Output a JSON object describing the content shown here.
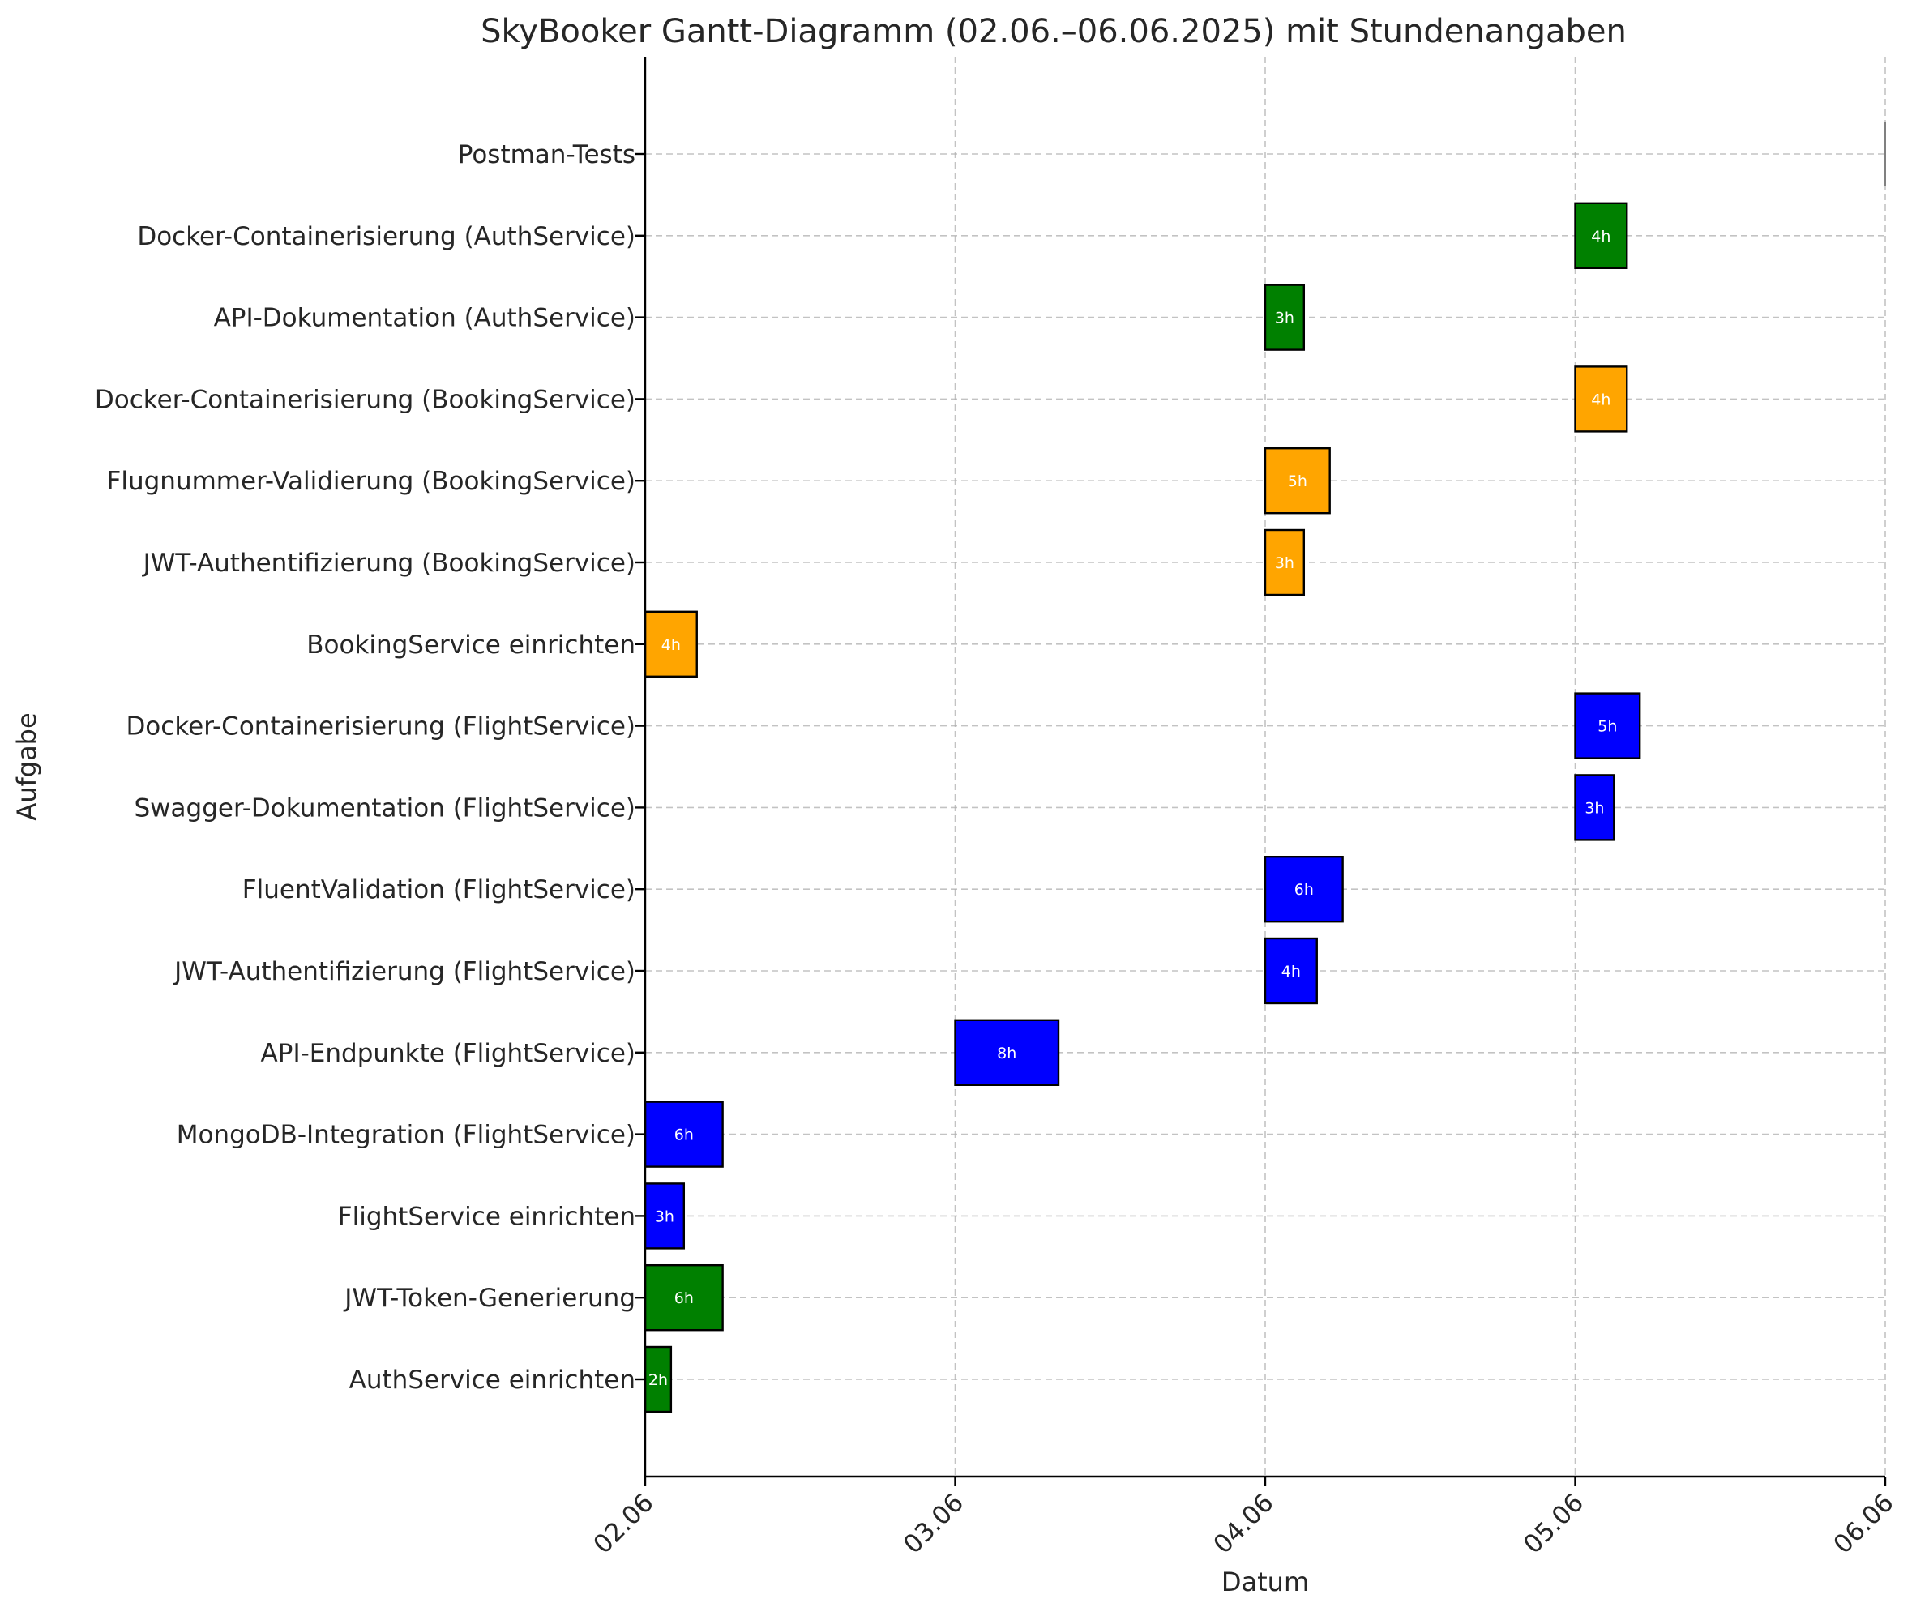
{
  "chart_data": {
    "type": "gantt",
    "title": "SkyBooker Gantt-Diagramm (02.06.–06.06.2025) mit Stundenangaben",
    "xlabel": "Datum",
    "ylabel": "Aufgabe",
    "x_ticks": [
      "02.06",
      "03.06",
      "04.06",
      "05.06",
      "06.06"
    ],
    "xlim": [
      "2025-06-02",
      "2025-06-06"
    ],
    "grid": true,
    "legend": "none",
    "colors": {
      "auth": "#008000",
      "flight": "#0000ff",
      "booking": "#ffa500",
      "other": "#808080"
    },
    "tasks": [
      {
        "name": "AuthService einrichten",
        "date": "2025-06-02",
        "hours": 2,
        "label": "2h",
        "group": "auth"
      },
      {
        "name": "JWT-Token-Generierung",
        "date": "2025-06-02",
        "hours": 6,
        "label": "6h",
        "group": "auth"
      },
      {
        "name": "FlightService einrichten",
        "date": "2025-06-02",
        "hours": 3,
        "label": "3h",
        "group": "flight"
      },
      {
        "name": "MongoDB-Integration (FlightService)",
        "date": "2025-06-02",
        "hours": 6,
        "label": "6h",
        "group": "flight"
      },
      {
        "name": "API-Endpunkte (FlightService)",
        "date": "2025-06-03",
        "hours": 8,
        "label": "8h",
        "group": "flight"
      },
      {
        "name": "JWT-Authentifizierung (FlightService)",
        "date": "2025-06-04",
        "hours": 4,
        "label": "4h",
        "group": "flight"
      },
      {
        "name": "FluentValidation (FlightService)",
        "date": "2025-06-04",
        "hours": 6,
        "label": "6h",
        "group": "flight"
      },
      {
        "name": "Swagger-Dokumentation (FlightService)",
        "date": "2025-06-05",
        "hours": 3,
        "label": "3h",
        "group": "flight"
      },
      {
        "name": "Docker-Containerisierung (FlightService)",
        "date": "2025-06-05",
        "hours": 5,
        "label": "5h",
        "group": "flight"
      },
      {
        "name": "BookingService einrichten",
        "date": "2025-06-02",
        "hours": 4,
        "label": "4h",
        "group": "booking"
      },
      {
        "name": "JWT-Authentifizierung (BookingService)",
        "date": "2025-06-04",
        "hours": 3,
        "label": "3h",
        "group": "booking"
      },
      {
        "name": "Flugnummer-Validierung (BookingService)",
        "date": "2025-06-04",
        "hours": 5,
        "label": "5h",
        "group": "booking"
      },
      {
        "name": "Docker-Containerisierung (BookingService)",
        "date": "2025-06-05",
        "hours": 4,
        "label": "4h",
        "group": "booking"
      },
      {
        "name": "API-Dokumentation (AuthService)",
        "date": "2025-06-04",
        "hours": 3,
        "label": "3h",
        "group": "auth"
      },
      {
        "name": "Docker-Containerisierung (AuthService)",
        "date": "2025-06-05",
        "hours": 4,
        "label": "4h",
        "group": "auth"
      },
      {
        "name": "Postman-Tests",
        "date": "2025-06-06",
        "hours": 0,
        "label": "",
        "group": "other"
      }
    ]
  }
}
